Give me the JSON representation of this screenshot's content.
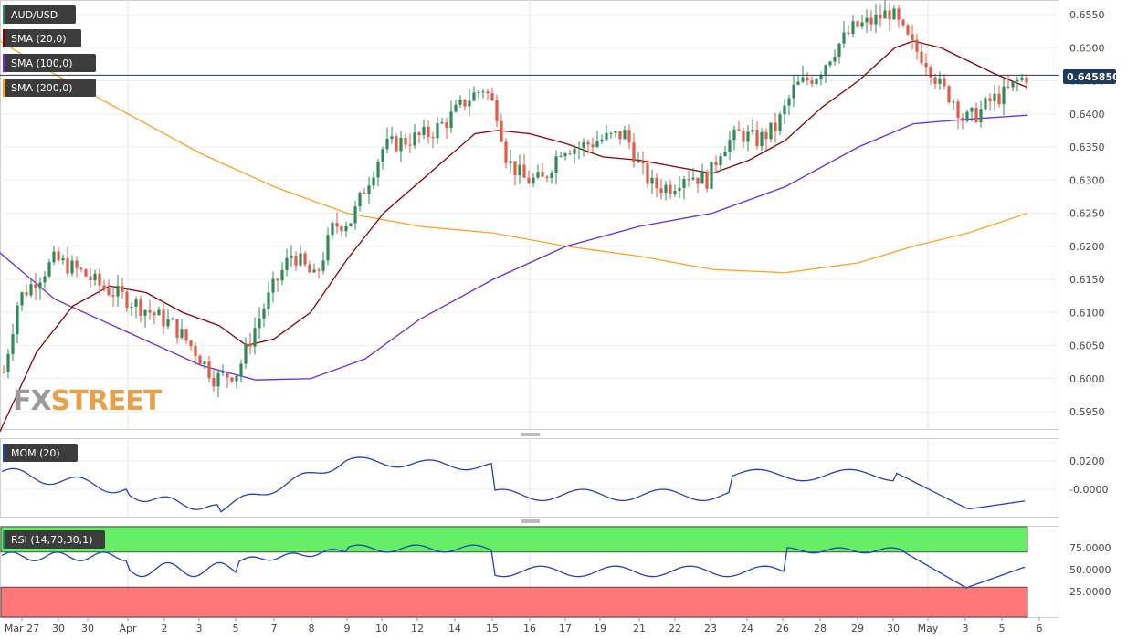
{
  "chart_data": [
    {
      "type": "line",
      "title": "AUD/USD",
      "series": [
        {
          "name": "AUD/USD",
          "kind": "candlestick"
        },
        {
          "name": "SMA (20,0)",
          "color": "#8b0000"
        },
        {
          "name": "SMA (100,0)",
          "color": "#6a2be2"
        },
        {
          "name": "SMA (200,0)",
          "color": "#ffa020"
        }
      ],
      "last_price": "0.645850",
      "y_ticks": [
        "0.6550",
        "0.6500",
        "0.6450",
        "0.6400",
        "0.6350",
        "0.6300",
        "0.6250",
        "0.6200",
        "0.6150",
        "0.6100",
        "0.6050",
        "0.6000",
        "0.5950"
      ],
      "ylim": [
        0.5915,
        0.6565
      ],
      "x_ticks": [
        "Mar 27",
        "30",
        "30",
        "Apr",
        "2",
        "3",
        "5",
        "7",
        "8",
        "9",
        "10",
        "12",
        "14",
        "15",
        "16",
        "17",
        "19",
        "21",
        "22",
        "23",
        "24",
        "26",
        "28",
        "29",
        "30",
        "May",
        "3",
        "5",
        "6"
      ],
      "watermark": "FXSTREET"
    },
    {
      "type": "line",
      "series": [
        {
          "name": "MOM (20)",
          "color": "#2040c0"
        }
      ],
      "y_ticks": [
        "0.0200",
        "-0.0000"
      ]
    },
    {
      "type": "line",
      "series": [
        {
          "name": "RSI (14,70,30,1)",
          "color": "#2040c0"
        }
      ],
      "y_ticks": [
        "75.0000",
        "50.0000",
        "25.0000"
      ],
      "overbought": 70,
      "oversold": 30
    }
  ],
  "colors": {
    "up": "#2e8b57",
    "down": "#e15a4a",
    "label_bg": "#3c3c3c"
  }
}
